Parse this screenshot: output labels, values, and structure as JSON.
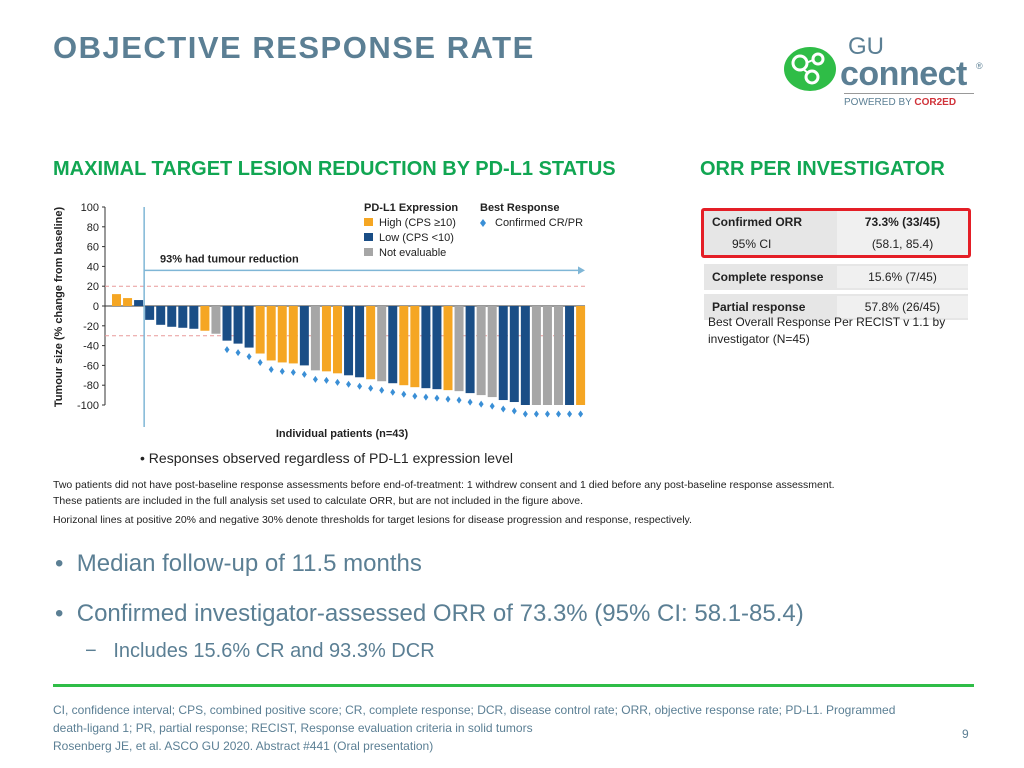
{
  "header": {
    "title": "OBJECTIVE RESPONSE RATE",
    "logo": {
      "gu": "GU",
      "connect": "connect",
      "reg": "®",
      "powered_by": "POWERED BY",
      "brand": "COR2ED"
    }
  },
  "left_section": {
    "heading": "MAXIMAL TARGET LESION REDUCTION BY PD-L1 STATUS"
  },
  "right_section": {
    "heading": "ORR PER INVESTIGATOR"
  },
  "chart_data": {
    "type": "bar",
    "title": "Maximal target lesion reduction by PD-L1 status",
    "xlabel": "Individual patients (n=43)",
    "ylabel": "Tumour size (% change from baseline)",
    "ylim": [
      -100,
      100
    ],
    "yticks": [
      "100",
      "80",
      "60",
      "40",
      "20",
      "0",
      "-20",
      "-40",
      "-60",
      "-80",
      "-100"
    ],
    "annotation": "93% had tumour reduction",
    "thresholds": [
      20,
      -30
    ],
    "legend": {
      "expression_title": "PD-L1 Expression",
      "response_title": "Best Response",
      "high": "High (CPS ≥10)",
      "low": "Low (CPS <10)",
      "ne": "Not evaluable",
      "cr_pr": "Confirmed CR/PR"
    },
    "colors": {
      "high": "#f5a623",
      "low": "#1a4e86",
      "ne": "#a6a6a6",
      "threshold": "#e89a9a",
      "arrow": "#7fb6d6",
      "diamond": "#3a8fd6"
    },
    "values": [
      12,
      8,
      6,
      -14,
      -19,
      -21,
      -22,
      -23,
      -25,
      -28,
      -35,
      -38,
      -42,
      -48,
      -55,
      -57,
      -58,
      -60,
      -65,
      -66,
      -68,
      -70,
      -72,
      -74,
      -76,
      -78,
      -80,
      -82,
      -83,
      -84,
      -85,
      -86,
      -88,
      -90,
      -92,
      -95,
      -97,
      -100,
      -100,
      -100,
      -100,
      -100,
      -100
    ],
    "expression": [
      "high",
      "high",
      "low",
      "low",
      "low",
      "low",
      "low",
      "low",
      "high",
      "ne",
      "low",
      "low",
      "low",
      "high",
      "high",
      "high",
      "high",
      "low",
      "ne",
      "high",
      "high",
      "low",
      "low",
      "high",
      "ne",
      "low",
      "high",
      "high",
      "low",
      "low",
      "high",
      "ne",
      "low",
      "ne",
      "ne",
      "low",
      "low",
      "low",
      "ne",
      "ne",
      "ne",
      "low",
      "high"
    ],
    "confirmed": [
      false,
      false,
      false,
      false,
      false,
      false,
      false,
      false,
      false,
      false,
      true,
      true,
      true,
      true,
      true,
      true,
      true,
      true,
      true,
      true,
      true,
      true,
      true,
      true,
      true,
      true,
      true,
      true,
      true,
      true,
      true,
      true,
      true,
      true,
      true,
      true,
      true,
      true,
      true,
      true,
      true,
      true,
      true
    ]
  },
  "orr_table": {
    "rows": [
      {
        "label": "Confirmed ORR",
        "value": "73.3% (33/45)"
      },
      {
        "label": "95% CI",
        "value": "(58.1, 85.4)"
      },
      {
        "label": "Complete response",
        "value": "15.6% (7/45)"
      },
      {
        "label": "Partial response",
        "value": "57.8% (26/45)"
      }
    ],
    "note": "Best Overall Response Per RECIST v 1.1 by investigator (N=45)"
  },
  "notes": {
    "responses": "Responses observed regardless of PD-L1 expression level",
    "fn1": "Two patients did not have post-baseline response assessments before end-of-treatment: 1 withdrew consent and 1 died before any post-baseline response assessment.",
    "fn2": "These patients are included in the full analysis set used to calculate ORR, but are not included in the figure above.",
    "fn3": "Horizonal lines at positive 20% and negative 30% denote thresholds for target lesions for disease progression and response, respectively."
  },
  "bullets": {
    "b1": "Median follow-up of 11.5 months",
    "b2": "Confirmed investigator-assessed ORR of 73.3% (95% CI: 58.1-85.4)",
    "b3": "Includes 15.6% CR and 93.3% DCR"
  },
  "footer": {
    "abbreviations": "CI, confidence interval; CPS, combined positive score; CR, complete response; DCR, disease control rate; ORR, objective response rate; PD-L1. Programmed death-ligand 1; PR, partial response; RECIST, Response evaluation criteria in solid tumors",
    "citation": "Rosenberg JE, et al. ASCO GU 2020. Abstract #441 (Oral presentation)",
    "page_number": "9"
  }
}
